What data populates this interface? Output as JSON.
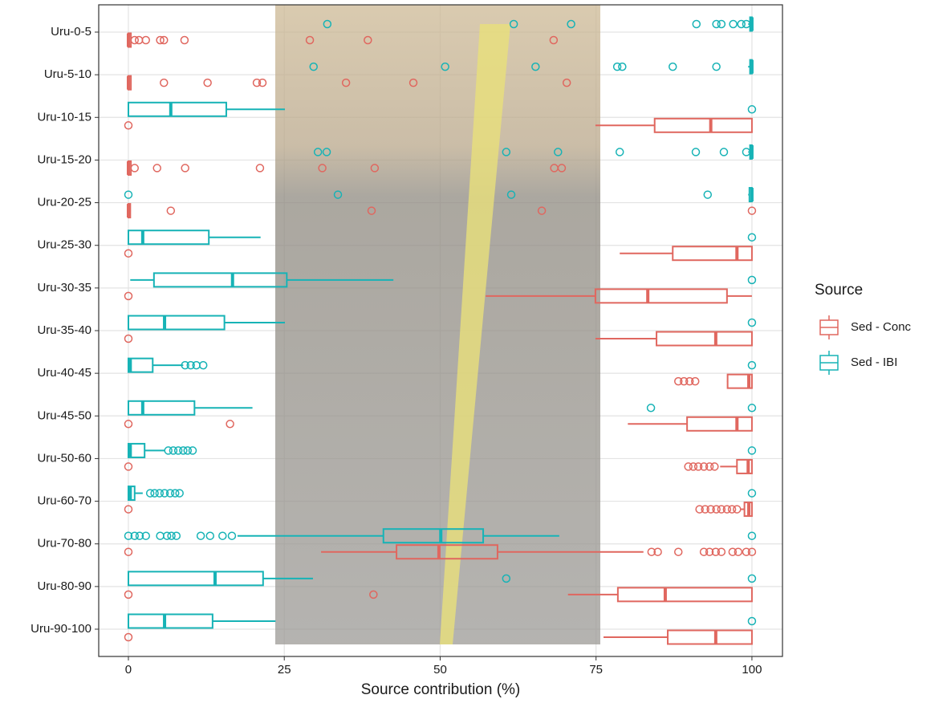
{
  "chart_data": {
    "type": "boxplot",
    "orientation": "horizontal",
    "xlabel": "Source contribution (%)",
    "legend_title": "Source",
    "legend": "right",
    "xlim": [
      -4.76,
      104.9
    ],
    "xticks": [
      0,
      25,
      50,
      75,
      100
    ],
    "grid": true,
    "categories": [
      "Uru-0-5",
      "Uru-5-10",
      "Uru-10-15",
      "Uru-15-20",
      "Uru-20-25",
      "Uru-25-30",
      "Uru-30-35",
      "Uru-35-40",
      "Uru-40-45",
      "Uru-45-50",
      "Uru-50-60",
      "Uru-60-70",
      "Uru-70-80",
      "Uru-80-90",
      "Uru-90-100"
    ],
    "series": [
      {
        "name": "Sed - Conc",
        "color": "#E0675F",
        "boxes": [
          {
            "low": 0,
            "q1": 0,
            "median": 0,
            "q3": 0.4,
            "high": 0.5,
            "outliers": [
              1,
              1.7,
              2.8,
              5.1,
              5.7,
              9,
              29.1,
              38.4,
              68.2
            ]
          },
          {
            "low": 0,
            "q1": 0,
            "median": 0,
            "q3": 0.4,
            "high": 0.5,
            "outliers": [
              5.7,
              12.7,
              20.6,
              21.5,
              34.9,
              45.7,
              70.3
            ]
          },
          {
            "low": 74.9,
            "q1": 84.4,
            "median": 93.4,
            "q3": 100,
            "high": 100,
            "outliers": [
              0
            ]
          },
          {
            "low": 0,
            "q1": 0,
            "median": 0,
            "q3": 0.4,
            "high": 0.5,
            "outliers": [
              1,
              4.6,
              9.1,
              21.1,
              31.1,
              39.5,
              68.3,
              69.5
            ]
          },
          {
            "low": 0,
            "q1": 0,
            "median": 0,
            "q3": 0.3,
            "high": 0.4,
            "outliers": [
              6.8,
              39,
              66.3,
              100
            ]
          },
          {
            "low": 78.8,
            "q1": 87.3,
            "median": 97.6,
            "q3": 100,
            "high": 100,
            "outliers": [
              0
            ]
          },
          {
            "low": 57.3,
            "q1": 74.9,
            "median": 83.3,
            "q3": 96,
            "high": 100,
            "outliers": [
              0
            ]
          },
          {
            "low": 74.9,
            "q1": 84.7,
            "median": 94.2,
            "q3": 100,
            "high": 100,
            "outliers": [
              0
            ]
          },
          {
            "low": 96,
            "q1": 96.1,
            "median": 99.5,
            "q3": 100,
            "high": 100,
            "outliers": [
              88.2,
              89.1,
              90,
              90.9
            ]
          },
          {
            "low": 80.1,
            "q1": 89.6,
            "median": 97.6,
            "q3": 100,
            "high": 100,
            "outliers": [
              0,
              16.3
            ]
          },
          {
            "low": 94.9,
            "q1": 97.6,
            "median": 99.4,
            "q3": 100,
            "high": 100,
            "outliers": [
              0,
              89.8,
              90.6,
              91.4,
              92.3,
              93.2,
              94
            ]
          },
          {
            "low": 98.1,
            "q1": 98.8,
            "median": 99.5,
            "q3": 100,
            "high": 100,
            "outliers": [
              0,
              91.6,
              92.5,
              93.4,
              94.3,
              95.1,
              96,
              96.8,
              97.6
            ]
          },
          {
            "low": 30.9,
            "q1": 43,
            "median": 49.8,
            "q3": 59.2,
            "high": 82.6,
            "outliers": [
              0,
              83.9,
              84.9,
              88.2,
              92.3,
              93.2,
              94.2,
              95.1,
              96.9,
              97.8,
              99.1,
              100
            ]
          },
          {
            "low": 70.5,
            "q1": 78.5,
            "median": 86.1,
            "q3": 100,
            "high": 100,
            "outliers": [
              0,
              39.3
            ]
          },
          {
            "low": 76.2,
            "q1": 86.5,
            "median": 94.2,
            "q3": 100,
            "high": 100,
            "outliers": [
              0
            ]
          }
        ]
      },
      {
        "name": "Sed - IBI",
        "color": "#17B3B6",
        "boxes": [
          {
            "low": 99.4,
            "q1": 99.7,
            "median": 100,
            "q3": 100,
            "high": 100,
            "outliers": [
              31.9,
              61.8,
              71,
              91.1,
              94.3,
              95.1,
              97,
              98.3,
              99.1
            ]
          },
          {
            "low": 99.4,
            "q1": 99.7,
            "median": 100,
            "q3": 100,
            "high": 100,
            "outliers": [
              29.7,
              50.8,
              65.3,
              78.4,
              79.2,
              87.3,
              94.3
            ]
          },
          {
            "low": 0,
            "q1": 0,
            "median": 6.8,
            "q3": 15.7,
            "high": 25.1,
            "outliers": [
              100
            ]
          },
          {
            "low": 99.4,
            "q1": 99.7,
            "median": 100,
            "q3": 100,
            "high": 100,
            "outliers": [
              30.4,
              31.8,
              60.6,
              68.9,
              78.8,
              91,
              95.5,
              99.1
            ]
          },
          {
            "low": 99.4,
            "q1": 99.6,
            "median": 100,
            "q3": 100,
            "high": 100,
            "outliers": [
              0,
              33.6,
              61.4,
              92.9
            ]
          },
          {
            "low": 0,
            "q1": 0,
            "median": 2.3,
            "q3": 12.9,
            "high": 21.2,
            "outliers": [
              100
            ]
          },
          {
            "low": 0.3,
            "q1": 4.1,
            "median": 16.7,
            "q3": 25.4,
            "high": 42.5,
            "outliers": [
              100
            ]
          },
          {
            "low": 0,
            "q1": 0,
            "median": 5.8,
            "q3": 15.4,
            "high": 25.1,
            "outliers": [
              100
            ]
          },
          {
            "low": 0,
            "q1": 0,
            "median": 0.3,
            "q3": 3.9,
            "high": 8.8,
            "outliers": [
              9.1,
              10,
              10.9,
              12,
              100
            ]
          },
          {
            "low": 0,
            "q1": 0,
            "median": 2.3,
            "q3": 10.6,
            "high": 19.9,
            "outliers": [
              83.8,
              100
            ]
          },
          {
            "low": 0,
            "q1": 0,
            "median": 0.3,
            "q3": 2.6,
            "high": 5.8,
            "outliers": [
              6.4,
              7.2,
              8,
              8.8,
              9.5,
              10.3,
              100
            ]
          },
          {
            "low": 0,
            "q1": 0,
            "median": 0.3,
            "q3": 1,
            "high": 2.3,
            "outliers": [
              3.5,
              4.2,
              5,
              5.8,
              6.7,
              7.5,
              8.2,
              100
            ]
          },
          {
            "low": 17.5,
            "q1": 40.9,
            "median": 50.1,
            "q3": 56.9,
            "high": 69.1,
            "outliers": [
              0,
              1,
              1.8,
              2.8,
              5.1,
              6.2,
              6.9,
              7.7,
              11.6,
              13.1,
              15.1,
              16.6,
              100
            ]
          },
          {
            "low": 0,
            "q1": 0,
            "median": 13.9,
            "q3": 21.6,
            "high": 29.6,
            "outliers": [
              60.6,
              100
            ]
          },
          {
            "low": 0,
            "q1": 0,
            "median": 5.8,
            "q3": 13.5,
            "high": 23.6,
            "outliers": [
              100
            ]
          }
        ]
      }
    ]
  }
}
